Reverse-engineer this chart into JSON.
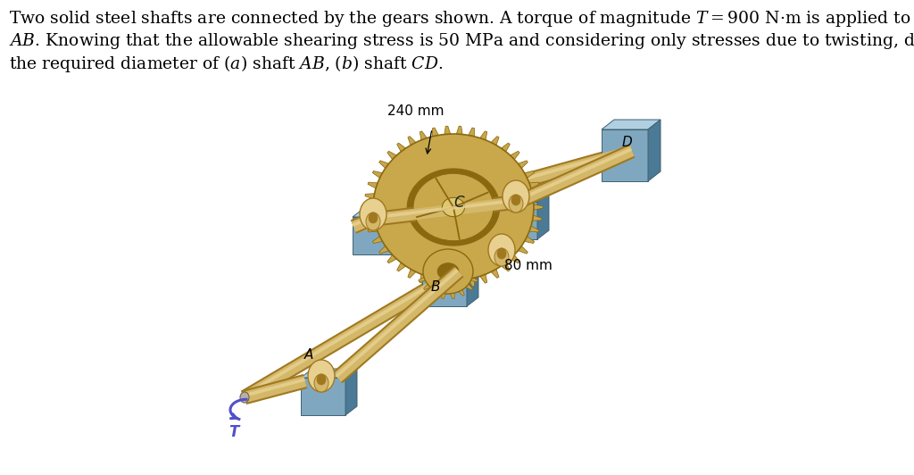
{
  "bg_color": "#ffffff",
  "text_color": "#000000",
  "shaft_color": "#d4b86a",
  "shaft_color_dark": "#a07820",
  "shaft_color_light": "#e8d090",
  "gear_color": "#c8a84b",
  "gear_color_dark": "#8a6810",
  "gear_color_light": "#ddc870",
  "support_color_front": "#7fa8c0",
  "support_color_top": "#b0cfe0",
  "support_color_side": "#4a7a95",
  "arrow_color": "#5050cc",
  "label_color": "#000000",
  "font_size_text": 13.5,
  "font_size_label": 11,
  "line1": "Two solid steel shafts are connected by the gears shown. A torque of magnitude $T = 900$ N·m is applied to shaft",
  "line2": "$AB$. Knowing that the allowable shearing stress is 50 MPa and considering only stresses due to twisting, determine",
  "line3": "the required diameter of ($a$) shaft $AB$, ($b$) shaft $CD$.",
  "label_A": "A",
  "label_B": "B",
  "label_C": "C",
  "label_D": "D",
  "label_T": "T",
  "ann_240": "240 mm",
  "ann_80": "80 mm"
}
